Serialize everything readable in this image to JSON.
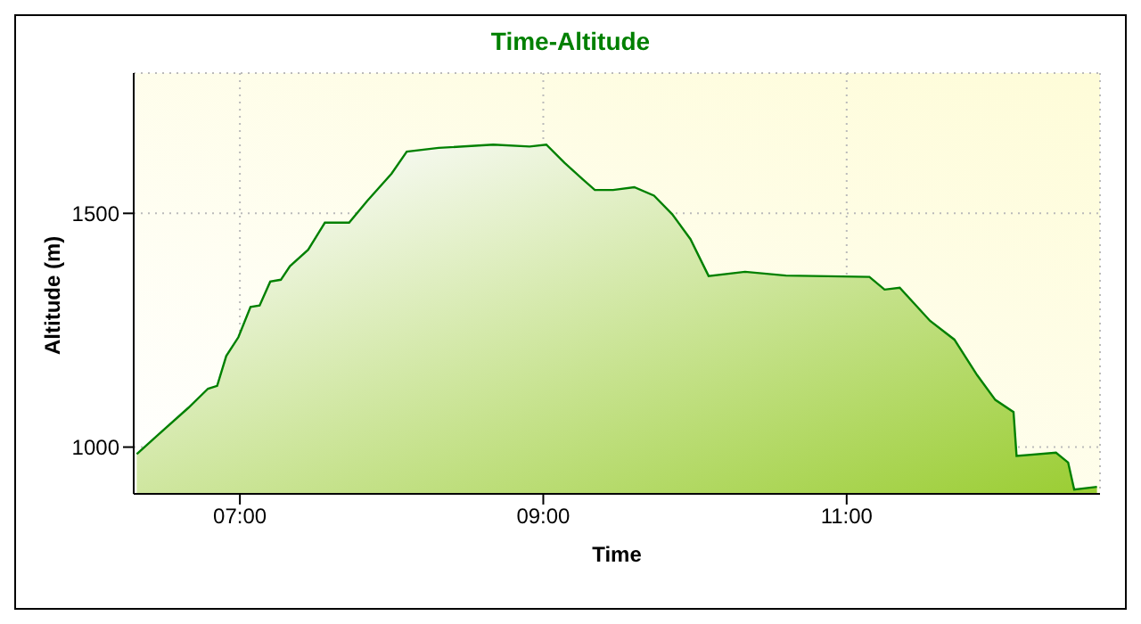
{
  "chart_data": {
    "type": "area",
    "title": "Time-Altitude",
    "xlabel": "Time",
    "ylabel": "Altitude (m)",
    "x": [
      6.32,
      6.46,
      6.66,
      6.79,
      6.85,
      6.91,
      6.99,
      7.07,
      7.13,
      7.2,
      7.27,
      7.33,
      7.45,
      7.56,
      7.72,
      7.84,
      8.0,
      8.1,
      8.31,
      8.67,
      8.91,
      9.02,
      9.14,
      9.26,
      9.34,
      9.46,
      9.6,
      9.73,
      9.85,
      9.97,
      10.09,
      10.33,
      10.6,
      11.15,
      11.25,
      11.35,
      11.55,
      11.71,
      11.86,
      11.98,
      12.1,
      12.12,
      12.38,
      12.46,
      12.5,
      12.65
    ],
    "series": [
      {
        "color": "#008000",
        "values": [
          985,
          1026,
          1084,
          1125,
          1131,
          1195,
          1235,
          1300,
          1303,
          1354,
          1358,
          1387,
          1422,
          1480,
          1480,
          1527,
          1585,
          1632,
          1640,
          1647,
          1643,
          1647,
          1608,
          1573,
          1550,
          1550,
          1556,
          1538,
          1498,
          1445,
          1366,
          1375,
          1367,
          1364,
          1337,
          1341,
          1270,
          1230,
          1154,
          1101,
          1075,
          981,
          988,
          967,
          909,
          915
        ]
      }
    ],
    "xlim": [
      6.3,
      12.67
    ],
    "xticks": [
      {
        "value": 7,
        "label": "07:00"
      },
      {
        "value": 9,
        "label": "09:00"
      },
      {
        "value": 11,
        "label": "11:00"
      }
    ],
    "ylim": [
      900,
      1800
    ],
    "yticks": [
      1000,
      1500
    ],
    "grid": true
  }
}
